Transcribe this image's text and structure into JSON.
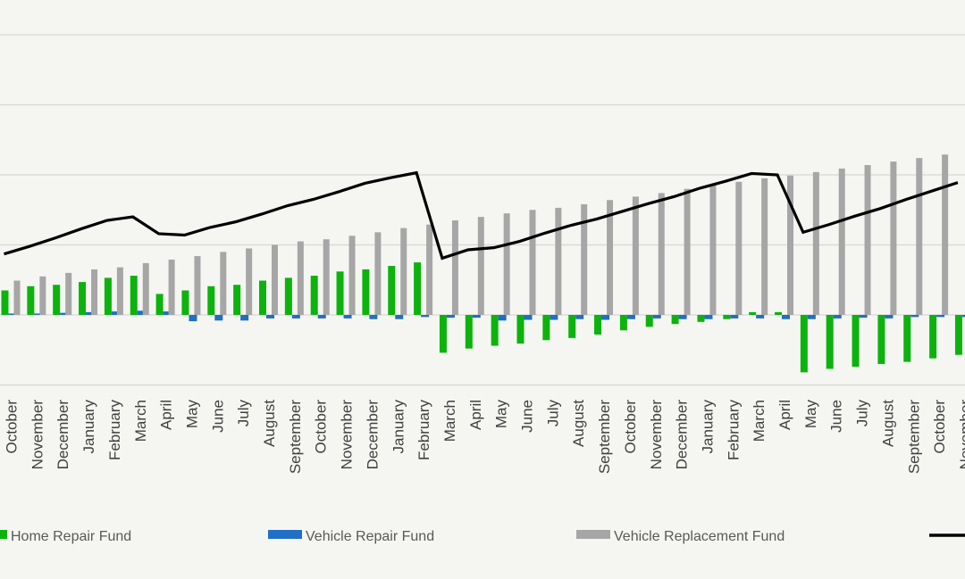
{
  "chart_data": {
    "type": "bar",
    "categories": [
      "October",
      "November",
      "December",
      "January",
      "February",
      "March",
      "April",
      "May",
      "June",
      "July",
      "August",
      "September",
      "October",
      "November",
      "December",
      "January",
      "February",
      "March",
      "April",
      "May",
      "June",
      "July",
      "August",
      "September",
      "October",
      "November",
      "December",
      "January",
      "February",
      "March",
      "April",
      "May",
      "June",
      "July",
      "August",
      "September",
      "October",
      "November"
    ],
    "series": [
      {
        "name": "Home Repair Fund",
        "type": "bar",
        "color": "#0cb30c",
        "values": [
          0.35,
          0.41,
          0.43,
          0.47,
          0.53,
          0.56,
          0.3,
          0.35,
          0.41,
          0.43,
          0.49,
          0.53,
          0.56,
          0.62,
          0.65,
          0.7,
          0.75,
          -0.54,
          -0.48,
          -0.44,
          -0.41,
          -0.36,
          -0.33,
          -0.28,
          -0.22,
          -0.17,
          -0.13,
          -0.1,
          -0.06,
          0.04,
          0.04,
          -0.82,
          -0.77,
          -0.74,
          -0.7,
          -0.67,
          -0.62,
          -0.57
        ]
      },
      {
        "name": "Vehicle Repair Fund",
        "type": "bar",
        "color": "#1f6fc4",
        "values": [
          0.02,
          0.02,
          0.03,
          0.04,
          0.05,
          0.06,
          0.05,
          -0.09,
          -0.08,
          -0.08,
          -0.05,
          -0.05,
          -0.05,
          -0.05,
          -0.06,
          -0.06,
          -0.03,
          -0.04,
          -0.04,
          -0.08,
          -0.07,
          -0.07,
          -0.06,
          -0.07,
          -0.06,
          -0.05,
          -0.06,
          -0.06,
          -0.05,
          -0.05,
          -0.06,
          -0.06,
          -0.05,
          -0.04,
          -0.05,
          -0.03,
          -0.03,
          -0.03
        ]
      },
      {
        "name": "Vehicle Replacement Fund",
        "type": "bar",
        "color": "#a6a6a6",
        "values": [
          0.49,
          0.55,
          0.6,
          0.65,
          0.68,
          0.74,
          0.79,
          0.84,
          0.9,
          0.95,
          1.0,
          1.05,
          1.08,
          1.13,
          1.18,
          1.24,
          1.29,
          1.35,
          1.4,
          1.45,
          1.5,
          1.53,
          1.58,
          1.64,
          1.69,
          1.74,
          1.8,
          1.85,
          1.9,
          1.95,
          1.99,
          2.04,
          2.09,
          2.14,
          2.19,
          2.24,
          2.29,
          2.31
        ]
      },
      {
        "type": "line",
        "color": "#000000",
        "values": [
          0.87,
          0.98,
          1.1,
          1.23,
          1.35,
          1.4,
          1.16,
          1.14,
          1.25,
          1.33,
          1.44,
          1.56,
          1.65,
          1.76,
          1.88,
          1.96,
          2.03,
          0.81,
          0.93,
          0.96,
          1.05,
          1.17,
          1.28,
          1.37,
          1.48,
          1.59,
          1.69,
          1.81,
          1.91,
          2.02,
          2.0,
          1.18,
          1.29,
          1.41,
          1.52,
          1.65,
          1.77,
          1.89
        ]
      }
    ],
    "ylim": [
      -1,
      4
    ],
    "grid": true,
    "legend": "bottom"
  }
}
